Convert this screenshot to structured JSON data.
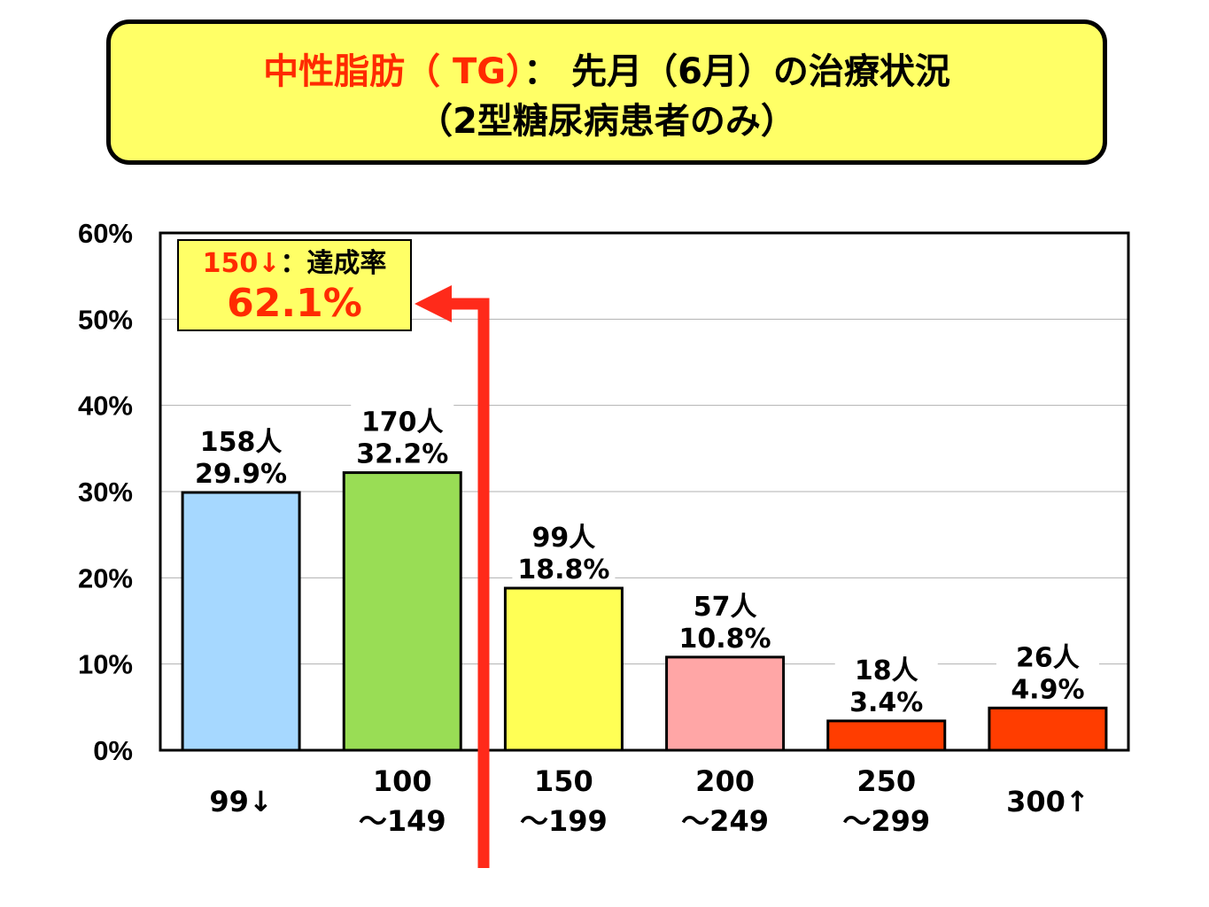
{
  "title": {
    "line1_red": "中性脂肪（ TG）",
    "line1_rest": "： 先月（6月）の治療状況",
    "line2": "（2型糖尿病患者のみ）"
  },
  "callout": {
    "threshold": "150↓",
    "label": "：達成率",
    "rate": "62.1%"
  },
  "colors": {
    "title_bg": "#ffff66",
    "accent_red": "#ff2a00",
    "arrow": "#ff2a1a"
  },
  "chart_data": {
    "type": "bar",
    "ylim": [
      0,
      60
    ],
    "yticks": [
      "0%",
      "10%",
      "20%",
      "30%",
      "40%",
      "50%",
      "60%"
    ],
    "grid": true,
    "categories": [
      {
        "line1": "99↓",
        "line2": ""
      },
      {
        "line1": "100",
        "line2": "～149"
      },
      {
        "line1": "150",
        "line2": "～199"
      },
      {
        "line1": "200",
        "line2": "～249"
      },
      {
        "line1": "250",
        "line2": "～299"
      },
      {
        "line1": "300↑",
        "line2": ""
      }
    ],
    "values": [
      29.9,
      32.2,
      18.8,
      10.8,
      3.4,
      4.9
    ],
    "counts": [
      "158人",
      "170人",
      "99人",
      "57人",
      "18人",
      "26人"
    ],
    "percent_labels": [
      "29.9%",
      "32.2%",
      "18.8%",
      "10.8%",
      "3.4%",
      "4.9%"
    ],
    "bar_colors": [
      "#a6d8ff",
      "#99dd55",
      "#ffff55",
      "#ffa6a6",
      "#ff3d00",
      "#ff3d00"
    ]
  }
}
